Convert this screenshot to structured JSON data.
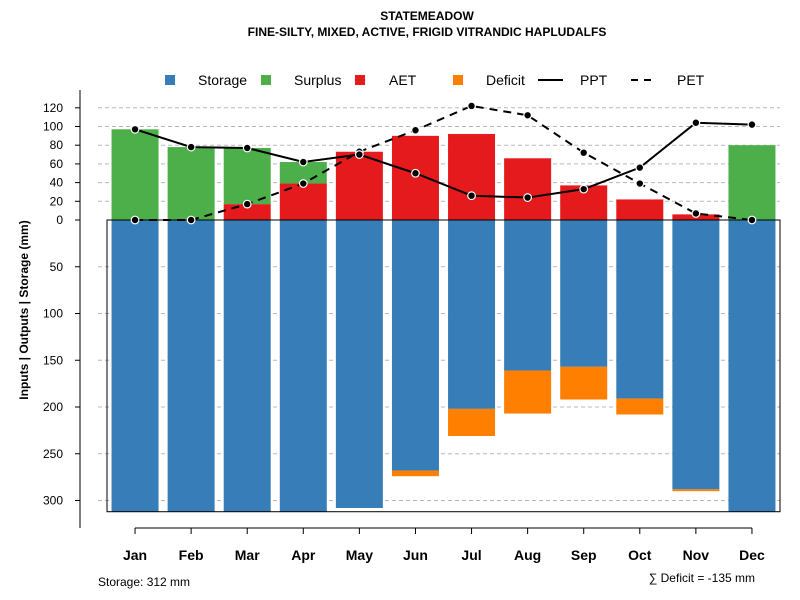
{
  "chart_data": {
    "type": "bar",
    "title": "STATEMEADOW",
    "subtitle": "FINE-SILTY, MIXED, ACTIVE, FRIGID VITRANDIC HAPLUDALFS",
    "ylabel": "Inputs | Outputs | Storage    (mm)",
    "categories": [
      "Jan",
      "Feb",
      "Mar",
      "Apr",
      "May",
      "Jun",
      "Jul",
      "Aug",
      "Sep",
      "Oct",
      "Nov",
      "Dec"
    ],
    "upper_ticks": [
      "0",
      "20",
      "40",
      "60",
      "80",
      "100",
      "120"
    ],
    "lower_ticks": [
      "50",
      "100",
      "150",
      "200",
      "250",
      "300"
    ],
    "upper_ylim": [
      0,
      120
    ],
    "lower_ylim": [
      0,
      312
    ],
    "grid": true,
    "legend": {
      "position": "top",
      "entries": [
        {
          "label": "Storage",
          "kind": "box",
          "color": "#377EB8"
        },
        {
          "label": "Surplus",
          "kind": "box",
          "color": "#4DAF4A"
        },
        {
          "label": "AET",
          "kind": "box",
          "color": "#E41A1C"
        },
        {
          "label": "Deficit",
          "kind": "box",
          "color": "#FF7F00"
        },
        {
          "label": "PPT",
          "kind": "solid",
          "color": "#000000"
        },
        {
          "label": "PET",
          "kind": "dashed",
          "color": "#000000"
        }
      ]
    },
    "series": [
      {
        "name": "AET",
        "color": "#E41A1C",
        "values": [
          0,
          0,
          17,
          39,
          73,
          90,
          92,
          66,
          37,
          22,
          6,
          0
        ]
      },
      {
        "name": "Surplus",
        "color": "#4DAF4A",
        "values": [
          97,
          78,
          60,
          23,
          0,
          0,
          0,
          0,
          0,
          0,
          0,
          80
        ]
      },
      {
        "name": "Storage",
        "color": "#377EB8",
        "values": [
          312,
          312,
          312,
          312,
          308,
          268,
          202,
          161,
          157,
          191,
          288,
          312
        ]
      },
      {
        "name": "Deficit",
        "color": "#FF7F00",
        "values": [
          0,
          0,
          0,
          0,
          0,
          6,
          29,
          46,
          35,
          17,
          2,
          0
        ]
      },
      {
        "name": "PPT",
        "color": "#000000",
        "values": [
          97,
          78,
          77,
          62,
          70,
          50,
          26,
          24,
          33,
          56,
          104,
          102
        ]
      },
      {
        "name": "PET",
        "color": "#000000",
        "values": [
          0,
          0,
          17,
          39,
          73,
          96,
          122,
          112,
          72,
          39,
          7,
          0
        ]
      }
    ],
    "footer_left": "Storage: 312 mm",
    "footer_right": "∑ Deficit = -135 mm"
  }
}
